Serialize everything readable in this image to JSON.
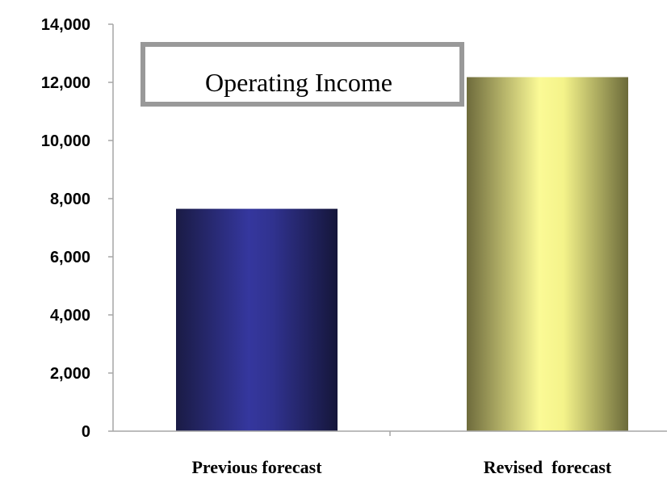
{
  "chart_data": {
    "type": "bar",
    "title": "Operating Income",
    "categories": [
      "Previous forecast",
      "Revised  forecast"
    ],
    "values": [
      7650,
      12180
    ],
    "ylim": [
      0,
      14000
    ],
    "yticks": [
      "0",
      "2,000",
      "4,000",
      "6,000",
      "8,000",
      "10,000",
      "12,000",
      "14,000"
    ],
    "xlabel": "",
    "ylabel": "",
    "grid": false,
    "legend": "none"
  },
  "colors": {
    "previous_bar": "#2e3192",
    "revised_bar": "#f7f78c",
    "axis": "#a6a6a6",
    "title_border": "#999999"
  }
}
